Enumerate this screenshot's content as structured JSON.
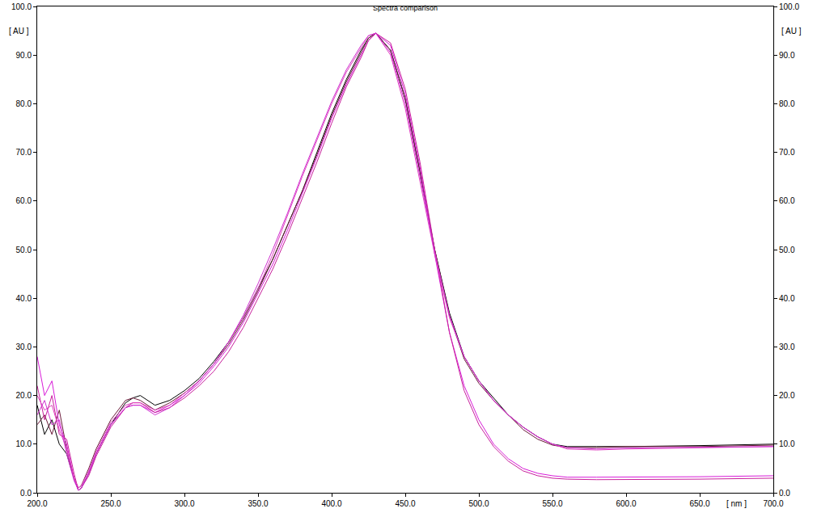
{
  "chart_data": {
    "type": "line",
    "title": "Spectra comparison",
    "x_label": "[ nm ]",
    "y_label": "[ AU ]",
    "x": [
      200,
      205,
      210,
      215,
      220,
      225,
      228,
      230,
      235,
      240,
      250,
      260,
      265,
      270,
      280,
      290,
      300,
      310,
      320,
      330,
      340,
      350,
      360,
      370,
      380,
      390,
      400,
      410,
      420,
      425,
      430,
      440,
      450,
      460,
      470,
      480,
      490,
      500,
      510,
      520,
      530,
      540,
      550,
      560,
      580,
      600,
      650,
      700
    ],
    "series": [
      {
        "color": "#000000",
        "values": [
          18,
          12,
          15,
          10,
          8,
          3,
          0.5,
          1,
          4,
          8,
          14,
          18.5,
          19.5,
          20,
          18,
          19,
          21,
          23.5,
          27,
          31,
          36,
          42,
          48,
          55,
          62,
          70,
          78,
          85,
          91,
          93.5,
          94.5,
          91,
          81,
          66,
          50,
          37,
          28,
          23,
          19.5,
          16,
          13.5,
          11.5,
          10,
          9.5,
          9.5,
          9.5,
          9.7,
          10
        ]
      },
      {
        "color": "#6b1a3a",
        "values": [
          14,
          16,
          12,
          17,
          9,
          3,
          1,
          1.5,
          5,
          9,
          15,
          19,
          19.5,
          19,
          17,
          18.5,
          20.5,
          23,
          26.5,
          30.5,
          35.5,
          41.5,
          48,
          55,
          62,
          69.5,
          77.5,
          84.5,
          90.5,
          93.5,
          94.5,
          91,
          81,
          66,
          50,
          36.5,
          27.5,
          22.5,
          19,
          16,
          13,
          11,
          9.8,
          9.3,
          9.3,
          9.5,
          9.5,
          9.8
        ]
      },
      {
        "color": "#d81bd8",
        "values": [
          28,
          20,
          23,
          14,
          10,
          3,
          0.5,
          1,
          4,
          8,
          14,
          17.5,
          18,
          18,
          16.5,
          18,
          20,
          22.5,
          26,
          30,
          35,
          41,
          47,
          54,
          61.5,
          69,
          77,
          84,
          90,
          93,
          94.5,
          92,
          82,
          67,
          49,
          33,
          22,
          15,
          10,
          7,
          5,
          4,
          3.5,
          3.2,
          3.2,
          3.2,
          3.3,
          3.5
        ]
      },
      {
        "color": "#c8209c",
        "values": [
          22,
          15,
          20,
          12,
          11,
          4,
          0.5,
          1,
          3.5,
          7.5,
          13.5,
          17.5,
          18.5,
          18.5,
          16.5,
          17.5,
          19.5,
          22,
          25,
          29,
          34,
          40,
          46,
          53,
          60.5,
          68,
          76,
          83.5,
          89.5,
          93,
          94.5,
          92.5,
          83,
          68,
          50,
          33,
          21,
          14,
          9.5,
          6.5,
          4.5,
          3.5,
          3,
          2.8,
          2.7,
          2.7,
          2.8,
          3
        ]
      },
      {
        "color": "#e040c0",
        "values": [
          20,
          17,
          18,
          13,
          9,
          3,
          1,
          1.5,
          4.5,
          8.5,
          14.5,
          18,
          18.5,
          18.5,
          17,
          18,
          20.5,
          23,
          26.5,
          31,
          36,
          42,
          49,
          57,
          65,
          72.5,
          80,
          86.5,
          91.5,
          94,
          94.5,
          90,
          79,
          64,
          49,
          36,
          28,
          23,
          19,
          16,
          13.5,
          11.5,
          10,
          9,
          8.8,
          9,
          9.2,
          9.5
        ]
      },
      {
        "color": "#d030d0",
        "values": [
          16,
          19,
          14,
          15,
          8,
          2.5,
          0.5,
          1,
          4,
          8,
          14,
          17.5,
          18,
          18,
          16,
          17.5,
          20,
          23,
          26.5,
          31,
          36.5,
          43,
          50,
          57.5,
          65.5,
          73,
          80.5,
          87,
          92,
          94,
          94.5,
          90.5,
          80,
          65,
          49.5,
          36.5,
          28,
          23,
          19,
          16,
          13.5,
          11.5,
          10,
          9.3,
          9,
          9.2,
          9.3,
          9.5
        ]
      }
    ],
    "xlim": [
      200,
      700
    ],
    "xticks": [
      {
        "value": 200,
        "label": "200.0"
      },
      {
        "value": 250,
        "label": "250.0"
      },
      {
        "value": 300,
        "label": "300.0"
      },
      {
        "value": 350,
        "label": "350.0"
      },
      {
        "value": 400,
        "label": "400.0"
      },
      {
        "value": 450,
        "label": "450.0"
      },
      {
        "value": 500,
        "label": "500.0"
      },
      {
        "value": 550,
        "label": "550.0"
      },
      {
        "value": 600,
        "label": "600.0"
      },
      {
        "value": 650,
        "label": "650.0"
      },
      {
        "value": 700,
        "label": "700.0"
      }
    ],
    "ylim": [
      0,
      100
    ],
    "yticks": [
      {
        "value": 0,
        "label": "0.0"
      },
      {
        "value": 10,
        "label": "10.0"
      },
      {
        "value": 20,
        "label": "20.0"
      },
      {
        "value": 30,
        "label": "30.0"
      },
      {
        "value": 40,
        "label": "40.0"
      },
      {
        "value": 50,
        "label": "50.0"
      },
      {
        "value": 60,
        "label": "60.0"
      },
      {
        "value": 70,
        "label": "70.0"
      },
      {
        "value": 80,
        "label": "80.0"
      },
      {
        "value": 90,
        "label": "90.0"
      },
      {
        "value": 100,
        "label": "100.0"
      }
    ],
    "y2lim": [
      0,
      100
    ],
    "y2ticks": [
      {
        "value": 0,
        "label": "0.0"
      },
      {
        "value": 10,
        "label": "10.0"
      },
      {
        "value": 20,
        "label": "20.0"
      },
      {
        "value": 30,
        "label": "30.0"
      },
      {
        "value": 40,
        "label": "40.0"
      },
      {
        "value": 50,
        "label": "50.0"
      },
      {
        "value": 60,
        "label": "60.0"
      },
      {
        "value": 70,
        "label": "70.0"
      },
      {
        "value": 80,
        "label": "80.0"
      },
      {
        "value": 90,
        "label": "90.0"
      },
      {
        "value": 100,
        "label": "100.0"
      }
    ],
    "grid": false
  }
}
